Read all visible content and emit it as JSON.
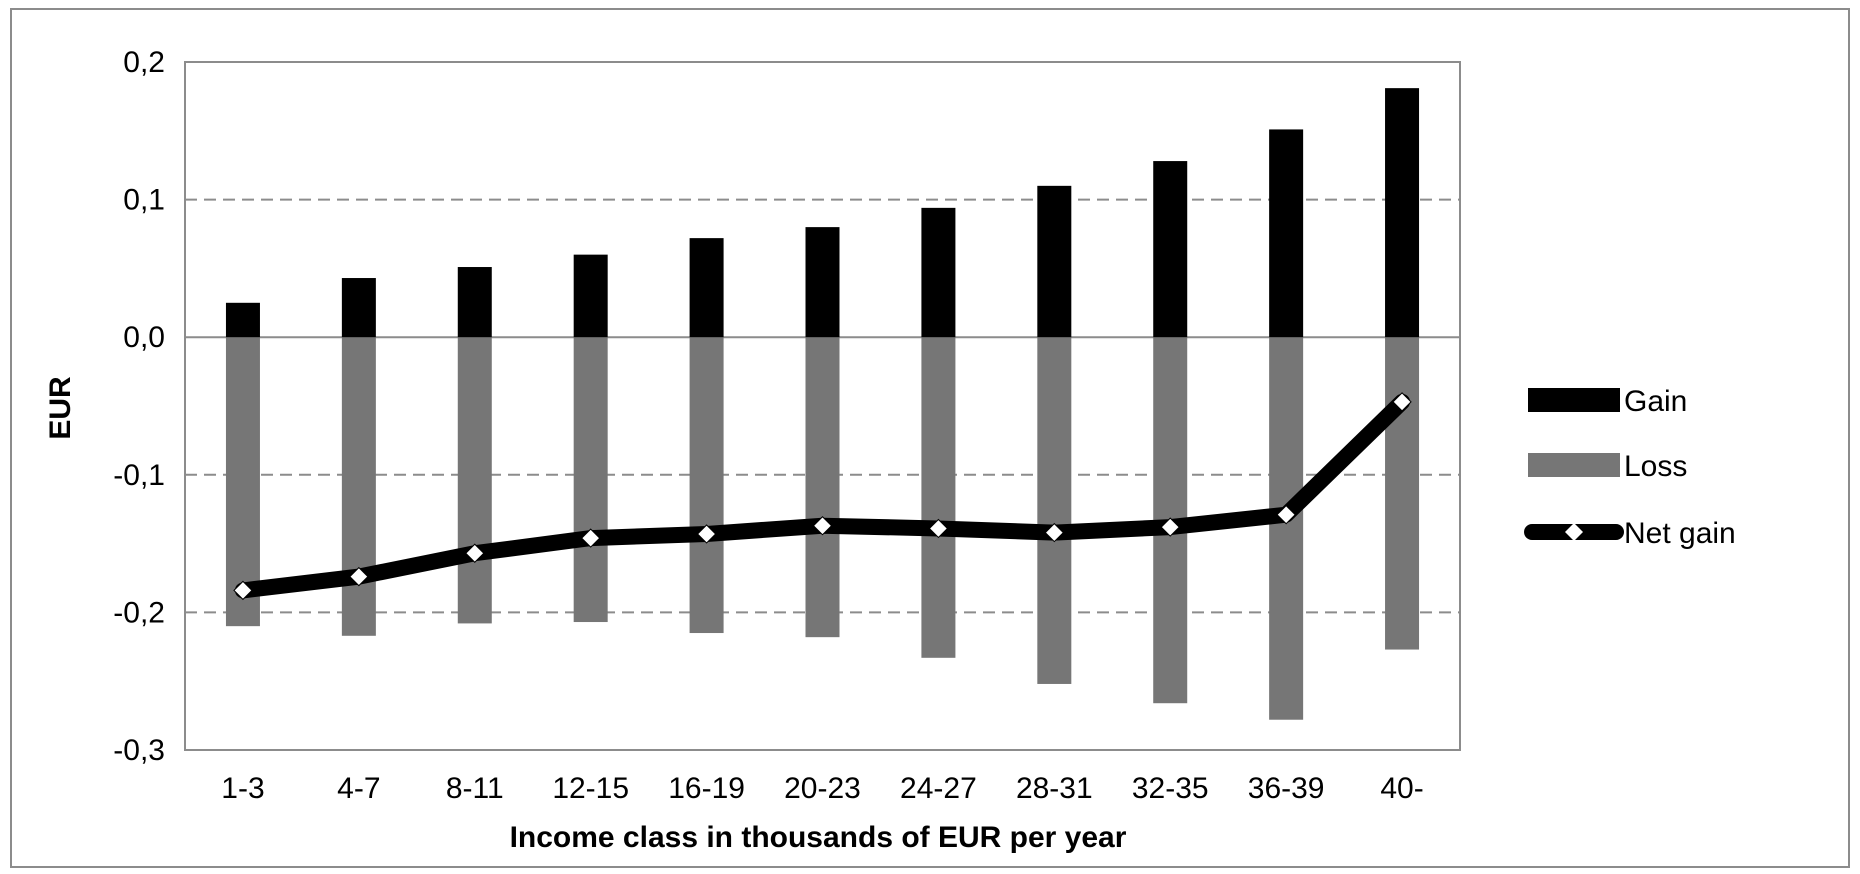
{
  "chart_data": {
    "type": "bar",
    "xlabel": "Income class in thousands of EUR per year",
    "ylabel": "EUR",
    "ylim": [
      -0.3,
      0.2
    ],
    "yticks": [
      "0,2",
      "0,1",
      "0,0",
      "-0,1",
      "-0,2",
      "-0,3"
    ],
    "ytick_values": [
      0.2,
      0.1,
      0.0,
      -0.1,
      -0.2,
      -0.3
    ],
    "categories": [
      "1-3",
      "4-7",
      "8-11",
      "12-15",
      "16-19",
      "20-23",
      "24-27",
      "28-31",
      "32-35",
      "36-39",
      "40-"
    ],
    "series": [
      {
        "name": "Gain",
        "kind": "bar",
        "color": "#000000",
        "values": [
          0.025,
          0.043,
          0.051,
          0.06,
          0.072,
          0.08,
          0.094,
          0.11,
          0.128,
          0.151,
          0.181
        ]
      },
      {
        "name": "Loss",
        "kind": "bar",
        "color": "#767676",
        "values": [
          -0.21,
          -0.217,
          -0.208,
          -0.207,
          -0.215,
          -0.218,
          -0.233,
          -0.252,
          -0.266,
          -0.278,
          -0.227
        ]
      },
      {
        "name": "Net gain",
        "kind": "line",
        "color": "#000000",
        "marker_color": "#ffffff",
        "values": [
          -0.184,
          -0.174,
          -0.157,
          -0.146,
          -0.143,
          -0.137,
          -0.139,
          -0.142,
          -0.138,
          -0.129,
          -0.047
        ]
      }
    ],
    "grid": "dashed horizontal",
    "legend_position": "right"
  }
}
